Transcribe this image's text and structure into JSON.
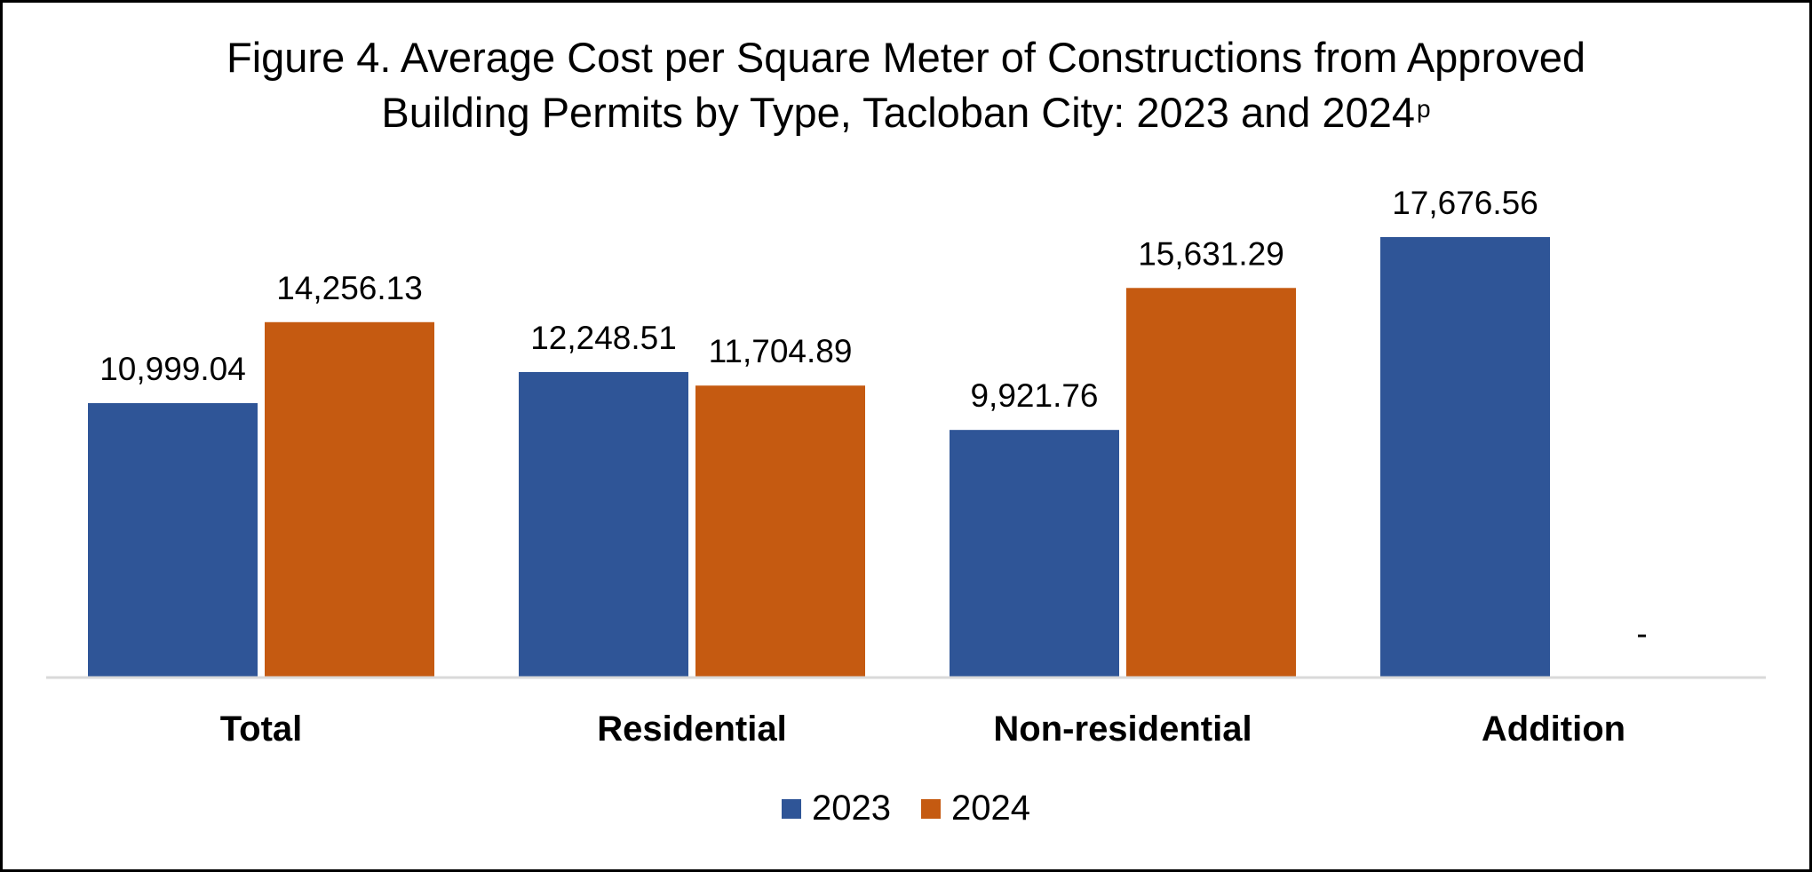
{
  "chart_data": {
    "type": "bar",
    "title_line1": "Figure 4. Average Cost per Square Meter of Constructions from Approved",
    "title_line2": "Building Permits by Type, Tacloban City: 2023 and 2024",
    "title_superscript": "p",
    "categories": [
      "Total",
      "Residential",
      "Non-residential",
      "Addition"
    ],
    "series": [
      {
        "name": "2023",
        "color": "#2F5597",
        "values": [
          10999.04,
          12248.51,
          9921.76,
          17676.56
        ],
        "labels": [
          "10,999.04",
          "12,248.51",
          "9,921.76",
          "17,676.56"
        ]
      },
      {
        "name": "2024",
        "color": "#C55A11",
        "values": [
          14256.13,
          11704.89,
          15631.29,
          null
        ],
        "labels": [
          "14,256.13",
          "11,704.89",
          "15,631.29",
          "-"
        ]
      }
    ],
    "ylim": [
      0,
      18000
    ],
    "grid": false,
    "legend_position": "bottom"
  }
}
